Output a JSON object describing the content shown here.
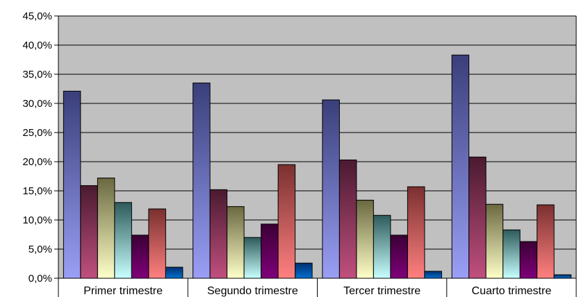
{
  "chart_data": {
    "type": "bar",
    "categories": [
      "Primer trimestre",
      "Segundo trimestre",
      "Tercer trimestre",
      "Cuarto trimestre"
    ],
    "series": [
      {
        "values": [
          32.1,
          33.5,
          30.6,
          38.3
        ]
      },
      {
        "values": [
          15.9,
          15.2,
          20.3,
          20.8
        ]
      },
      {
        "values": [
          17.2,
          12.3,
          13.4,
          12.7
        ]
      },
      {
        "values": [
          13.0,
          7.0,
          10.8,
          8.3
        ]
      },
      {
        "values": [
          7.4,
          9.3,
          7.4,
          6.3
        ]
      },
      {
        "values": [
          11.9,
          19.5,
          15.7,
          12.6
        ]
      },
      {
        "values": [
          1.9,
          2.6,
          1.2,
          0.6
        ]
      }
    ],
    "ylim": [
      0,
      45
    ],
    "yticks": [
      "0,0%",
      "5,0%",
      "10,0%",
      "15,0%",
      "20,0%",
      "25,0%",
      "30,0%",
      "35,0%",
      "40,0%",
      "45,0%"
    ],
    "grid": true,
    "legend": "none",
    "plot_background": "#c0c0c0",
    "series_colors": [
      [
        "#3a3f7a",
        "#9a9ff5"
      ],
      [
        "#4a1a30",
        "#c0507e"
      ],
      [
        "#6a6840",
        "#ffffc8"
      ],
      [
        "#2e5a5a",
        "#c8ffff"
      ],
      [
        "#3a0035",
        "#80007a"
      ],
      [
        "#7a3030",
        "#ff8080"
      ],
      [
        "#003070",
        "#0070d0"
      ]
    ]
  }
}
